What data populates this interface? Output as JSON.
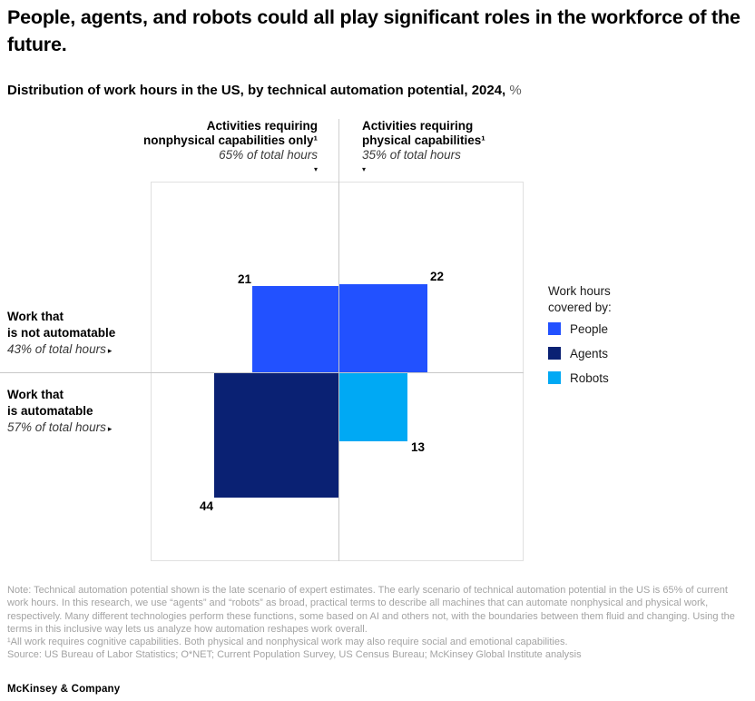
{
  "page": {
    "title": "People, agents, and robots could all play significant roles in the workforce of the future.",
    "subtitle_bold": "Distribution of work hours in the US, by technical automation potential, 2024,",
    "subtitle_unit": "%",
    "brand": "McKinsey & Company"
  },
  "chart_data": {
    "type": "quadrant-squares",
    "layout_hint": "2x2 grid around a center crosshair; each square's area is proportional to its value (% of total US work hours); gridlines on; legend at right",
    "title": "Distribution of work hours in the US, by technical automation potential, 2024, %",
    "unit": "% of total US work hours",
    "columns": [
      {
        "label_line1": "Activities requiring",
        "label_line2": "nonphysical capabilities only¹",
        "share": "65% of total hours"
      },
      {
        "label_line1": "Activities requiring",
        "label_line2": "physical capabilities¹",
        "share": "35% of total hours"
      }
    ],
    "rows": [
      {
        "label_line1": "Work that",
        "label_line2": "is not automatable",
        "share": "43% of total hours"
      },
      {
        "label_line1": "Work that",
        "label_line2": "is automatable",
        "share": "57% of total hours"
      }
    ],
    "cells": [
      {
        "row": "Work that is not automatable",
        "column": "Activities requiring nonphysical capabilities only",
        "series": "People",
        "value": 21
      },
      {
        "row": "Work that is not automatable",
        "column": "Activities requiring physical capabilities",
        "series": "People",
        "value": 22
      },
      {
        "row": "Work that is automatable",
        "column": "Activities requiring nonphysical capabilities only",
        "series": "Agents",
        "value": 44
      },
      {
        "row": "Work that is automatable",
        "column": "Activities requiring physical capabilities",
        "series": "Robots",
        "value": 13
      }
    ],
    "colors": {
      "people": "#2251ff",
      "agents": "#0a2173",
      "robots": "#00a9f4"
    },
    "legend": {
      "title_line1": "Work hours",
      "title_line2": "covered by:",
      "position": "right",
      "entries": [
        {
          "label": "People",
          "color": "#2251ff"
        },
        {
          "label": "Agents",
          "color": "#0a2173"
        },
        {
          "label": "Robots",
          "color": "#00a9f4"
        }
      ]
    },
    "icons": {
      "column_pointer": "triangle-down",
      "row_pointer": "triangle-right"
    }
  },
  "footer": {
    "note": "Note: Technical automation potential shown is the late scenario of expert estimates. The early scenario of technical automation potential in the US is 65% of current work hours. In this research, we use “agents” and “robots” as broad, practical terms to describe all machines that can automate nonphysical and physical work, respectively. Many different technologies perform these functions, some based on AI and others not, with the boundaries between them fluid and changing. Using the terms in this inclusive way lets us analyze how automation reshapes work overall.",
    "footnote": "¹All work requires cognitive capabilities. Both physical and nonphysical work may also require social and emotional capabilities.",
    "source": "Source: US Bureau of Labor Statistics; O*NET; Current Population Survey, US Census Bureau; McKinsey Global Institute analysis"
  }
}
